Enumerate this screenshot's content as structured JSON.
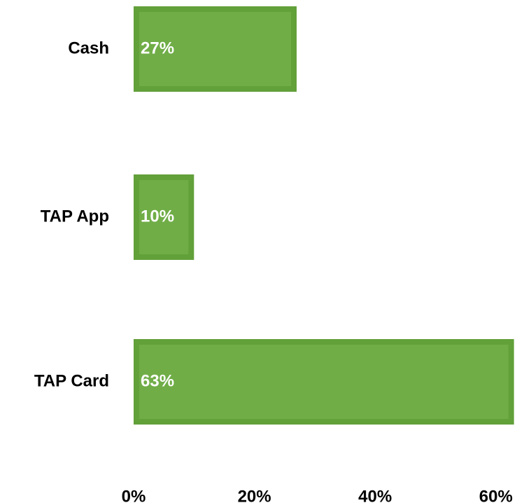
{
  "chart_data": {
    "type": "bar",
    "orientation": "horizontal",
    "categories": [
      "Cash",
      "TAP App",
      "TAP Card"
    ],
    "values": [
      27,
      10,
      63
    ],
    "value_labels": [
      "27%",
      "10%",
      "63%"
    ],
    "color": "#70ad47",
    "xlim": [
      0,
      63.5
    ],
    "xticks": [
      {
        "value": 0,
        "label": "0%"
      },
      {
        "value": 20,
        "label": "20%"
      },
      {
        "value": 40,
        "label": "40%"
      },
      {
        "value": 60,
        "label": "60%"
      }
    ],
    "grid": false
  }
}
